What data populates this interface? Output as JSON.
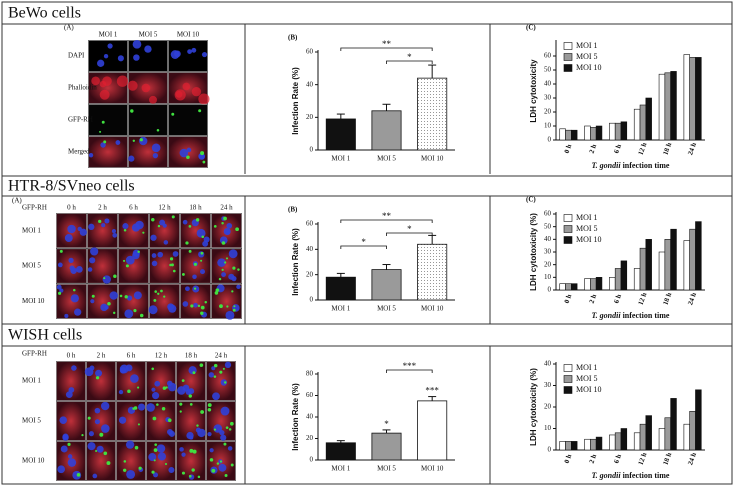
{
  "sections": [
    {
      "title": "BeWo cells",
      "image": {
        "panel_label": "(A)",
        "column_labels": [
          "MOI 1",
          "MOI 5",
          "MOI 10"
        ],
        "row_labels": [
          "DAPI",
          "Phalloidin",
          "GFP-RH",
          "Merged"
        ]
      }
    },
    {
      "title": "HTR-8/SVneo cells",
      "image": {
        "panel_label": "(A)",
        "corner_label": "GFP-RH",
        "column_labels": [
          "0 h",
          "2 h",
          "6 h",
          "12 h",
          "18 h",
          "24 h"
        ],
        "row_labels": [
          "MOI 1",
          "MOI 5",
          "MOI 10"
        ]
      }
    },
    {
      "title": "WISH cells",
      "image": {
        "corner_label": "GFP-RH",
        "column_labels": [
          "0 h",
          "2 h",
          "6 h",
          "12 h",
          "18 h",
          "24 h"
        ],
        "row_labels": [
          "MOI 1",
          "MOI 5",
          "MOI 10"
        ]
      }
    }
  ],
  "chart_data": [
    {
      "type": "bar",
      "panel_label": "(B)",
      "y_label": "Infection Rate (%)",
      "categories": [
        "MOI 1",
        "MOI 5",
        "MOI 10"
      ],
      "values": [
        19,
        24,
        44
      ],
      "errors": [
        3,
        4,
        8
      ],
      "colors": [
        "#111111",
        "#9a9a9a",
        "#ffffff"
      ],
      "fill_patterns": [
        "solid",
        "solid",
        "dotted"
      ],
      "ylim": [
        0,
        60
      ],
      "yticks": [
        0,
        20,
        40,
        60
      ],
      "annotations": [
        {
          "label": "**",
          "between": [
            "MOI 1",
            "MOI 10"
          ]
        },
        {
          "label": "*",
          "between": [
            "MOI 5",
            "MOI 10"
          ]
        }
      ]
    },
    {
      "type": "grouped_bar",
      "panel_label": "(C)",
      "y_label": "LDH cytotoxicity",
      "x_label": {
        "italic": "T. gondii",
        "text": " infection time"
      },
      "categories": [
        "0 h",
        "2 h",
        "6 h",
        "12 h",
        "18 h",
        "24 h"
      ],
      "ylim": [
        0,
        70
      ],
      "yticks": [
        0,
        10,
        20,
        30,
        40,
        50,
        60
      ],
      "legend": "upper-left",
      "series": [
        {
          "name": "MOI 1",
          "color": "#ffffff",
          "values": [
            8,
            10,
            12,
            22,
            47,
            61
          ]
        },
        {
          "name": "MOI 5",
          "color": "#9a9a9a",
          "values": [
            7,
            9,
            12,
            25,
            48,
            59
          ]
        },
        {
          "name": "MOI 10",
          "color": "#111111",
          "values": [
            7,
            10,
            13,
            30,
            49,
            59
          ]
        }
      ]
    },
    {
      "type": "bar",
      "panel_label": "(B)",
      "y_label": "Infection Rate (%)",
      "categories": [
        "MOI 1",
        "MOI 5",
        "MOI 10"
      ],
      "values": [
        18,
        24,
        44
      ],
      "errors": [
        3,
        4,
        7
      ],
      "colors": [
        "#111111",
        "#9a9a9a",
        "#ffffff"
      ],
      "fill_patterns": [
        "solid",
        "solid",
        "dotted"
      ],
      "ylim": [
        0,
        60
      ],
      "yticks": [
        0,
        20,
        40,
        60
      ],
      "annotations": [
        {
          "label": "**",
          "between": [
            "MOI 1",
            "MOI 10"
          ]
        },
        {
          "label": "*",
          "between": [
            "MOI 5",
            "MOI 10"
          ]
        },
        {
          "label": "*",
          "between": [
            "MOI 1",
            "MOI 5"
          ]
        }
      ]
    },
    {
      "type": "grouped_bar",
      "panel_label": "(C)",
      "y_label": "LDH cytotoxicity (%)",
      "x_label": {
        "italic": "T. gondii",
        "text": " infection time"
      },
      "categories": [
        "0 h",
        "2 h",
        "6 h",
        "12 h",
        "18 h",
        "24 h"
      ],
      "ylim": [
        0,
        60
      ],
      "yticks": [
        0,
        10,
        20,
        30,
        40,
        50,
        60
      ],
      "legend": "upper-left",
      "series": [
        {
          "name": "MOI 1",
          "color": "#ffffff",
          "values": [
            5,
            9,
            10,
            17,
            30,
            39
          ]
        },
        {
          "name": "MOI 5",
          "color": "#9a9a9a",
          "values": [
            5,
            9,
            17,
            33,
            40,
            48
          ]
        },
        {
          "name": "MOI 10",
          "color": "#111111",
          "values": [
            5,
            10,
            23,
            40,
            48,
            54
          ]
        }
      ]
    },
    {
      "type": "bar",
      "y_label": "Infection Rate (%)",
      "categories": [
        "MOI 1",
        "MOI 5",
        "MOI 10"
      ],
      "values": [
        16,
        25,
        55
      ],
      "errors": [
        2,
        3,
        4
      ],
      "colors": [
        "#111111",
        "#9a9a9a",
        "#ffffff"
      ],
      "fill_patterns": [
        "solid",
        "solid",
        "solid"
      ],
      "ylim": [
        0,
        80
      ],
      "yticks": [
        0,
        20,
        40,
        60,
        80
      ],
      "annotations": [
        {
          "label": "***",
          "between": [
            "MOI 5",
            "MOI 10"
          ]
        },
        {
          "label": "*",
          "over": "MOI 5"
        },
        {
          "label": "***",
          "over": "MOI 10"
        }
      ]
    },
    {
      "type": "grouped_bar",
      "y_label": "LDH cytotoxicity (%)",
      "x_label": {
        "italic": "T. gondii",
        "text": " infection time"
      },
      "categories": [
        "0 h",
        "2 h",
        "6 h",
        "12 h",
        "18 h",
        "24 h"
      ],
      "ylim": [
        0,
        40
      ],
      "yticks": [
        0,
        10,
        20,
        30,
        40
      ],
      "legend": "upper-left",
      "series": [
        {
          "name": "MOI 1",
          "color": "#ffffff",
          "values": [
            4,
            5,
            7,
            8,
            10,
            12
          ]
        },
        {
          "name": "MOI 5",
          "color": "#9a9a9a",
          "values": [
            4,
            5,
            8,
            12,
            15,
            18
          ]
        },
        {
          "name": "MOI 10",
          "color": "#111111",
          "values": [
            4,
            6,
            10,
            16,
            24,
            28
          ]
        }
      ]
    }
  ]
}
